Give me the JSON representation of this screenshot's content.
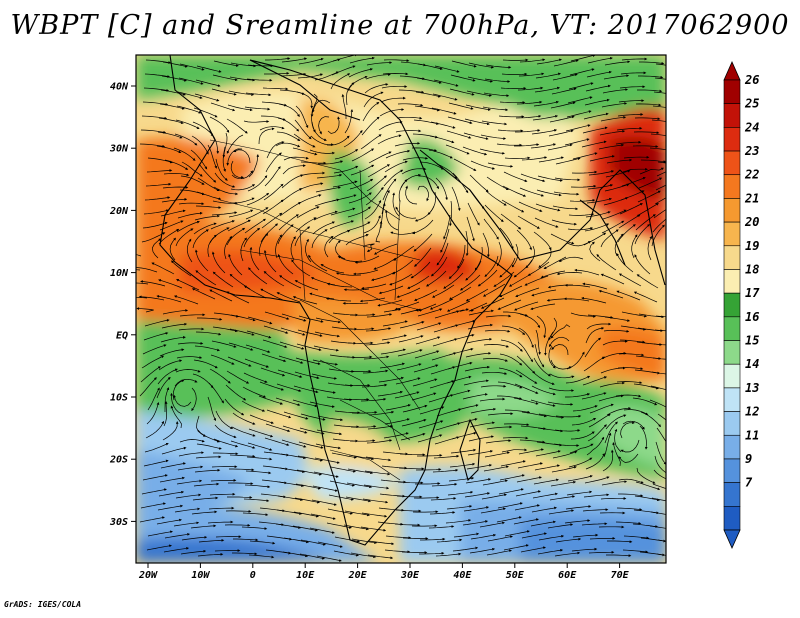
{
  "title": "WBPT [C] and Sreamline at 700hPa, VT: 2017062900",
  "credit": "GrADS: IGES/COLA",
  "map": {
    "lon_labels": [
      "20W",
      "10W",
      "0",
      "10E",
      "20E",
      "30E",
      "40E",
      "50E",
      "60E",
      "70E"
    ],
    "lat_labels": [
      "40N",
      "30N",
      "20N",
      "10N",
      "EQ",
      "10S",
      "20S",
      "30S"
    ]
  },
  "colorbar": {
    "labels": [
      "26",
      "25",
      "24",
      "23",
      "22",
      "21",
      "20",
      "19",
      "18",
      "17",
      "16",
      "15",
      "14",
      "13",
      "12",
      "11",
      "9",
      "7"
    ],
    "colors": [
      "#a00000",
      "#c21208",
      "#dd2c10",
      "#ee5318",
      "#f4781f",
      "#f59930",
      "#f7b54e",
      "#f7d98c",
      "#fbeeb2",
      "#35a335",
      "#58c058",
      "#8dd98a",
      "#dcf6e6",
      "#bfe3f6",
      "#9bcaf0",
      "#78aee8",
      "#5592dd",
      "#3575cf",
      "#1f5cc2"
    ]
  }
}
